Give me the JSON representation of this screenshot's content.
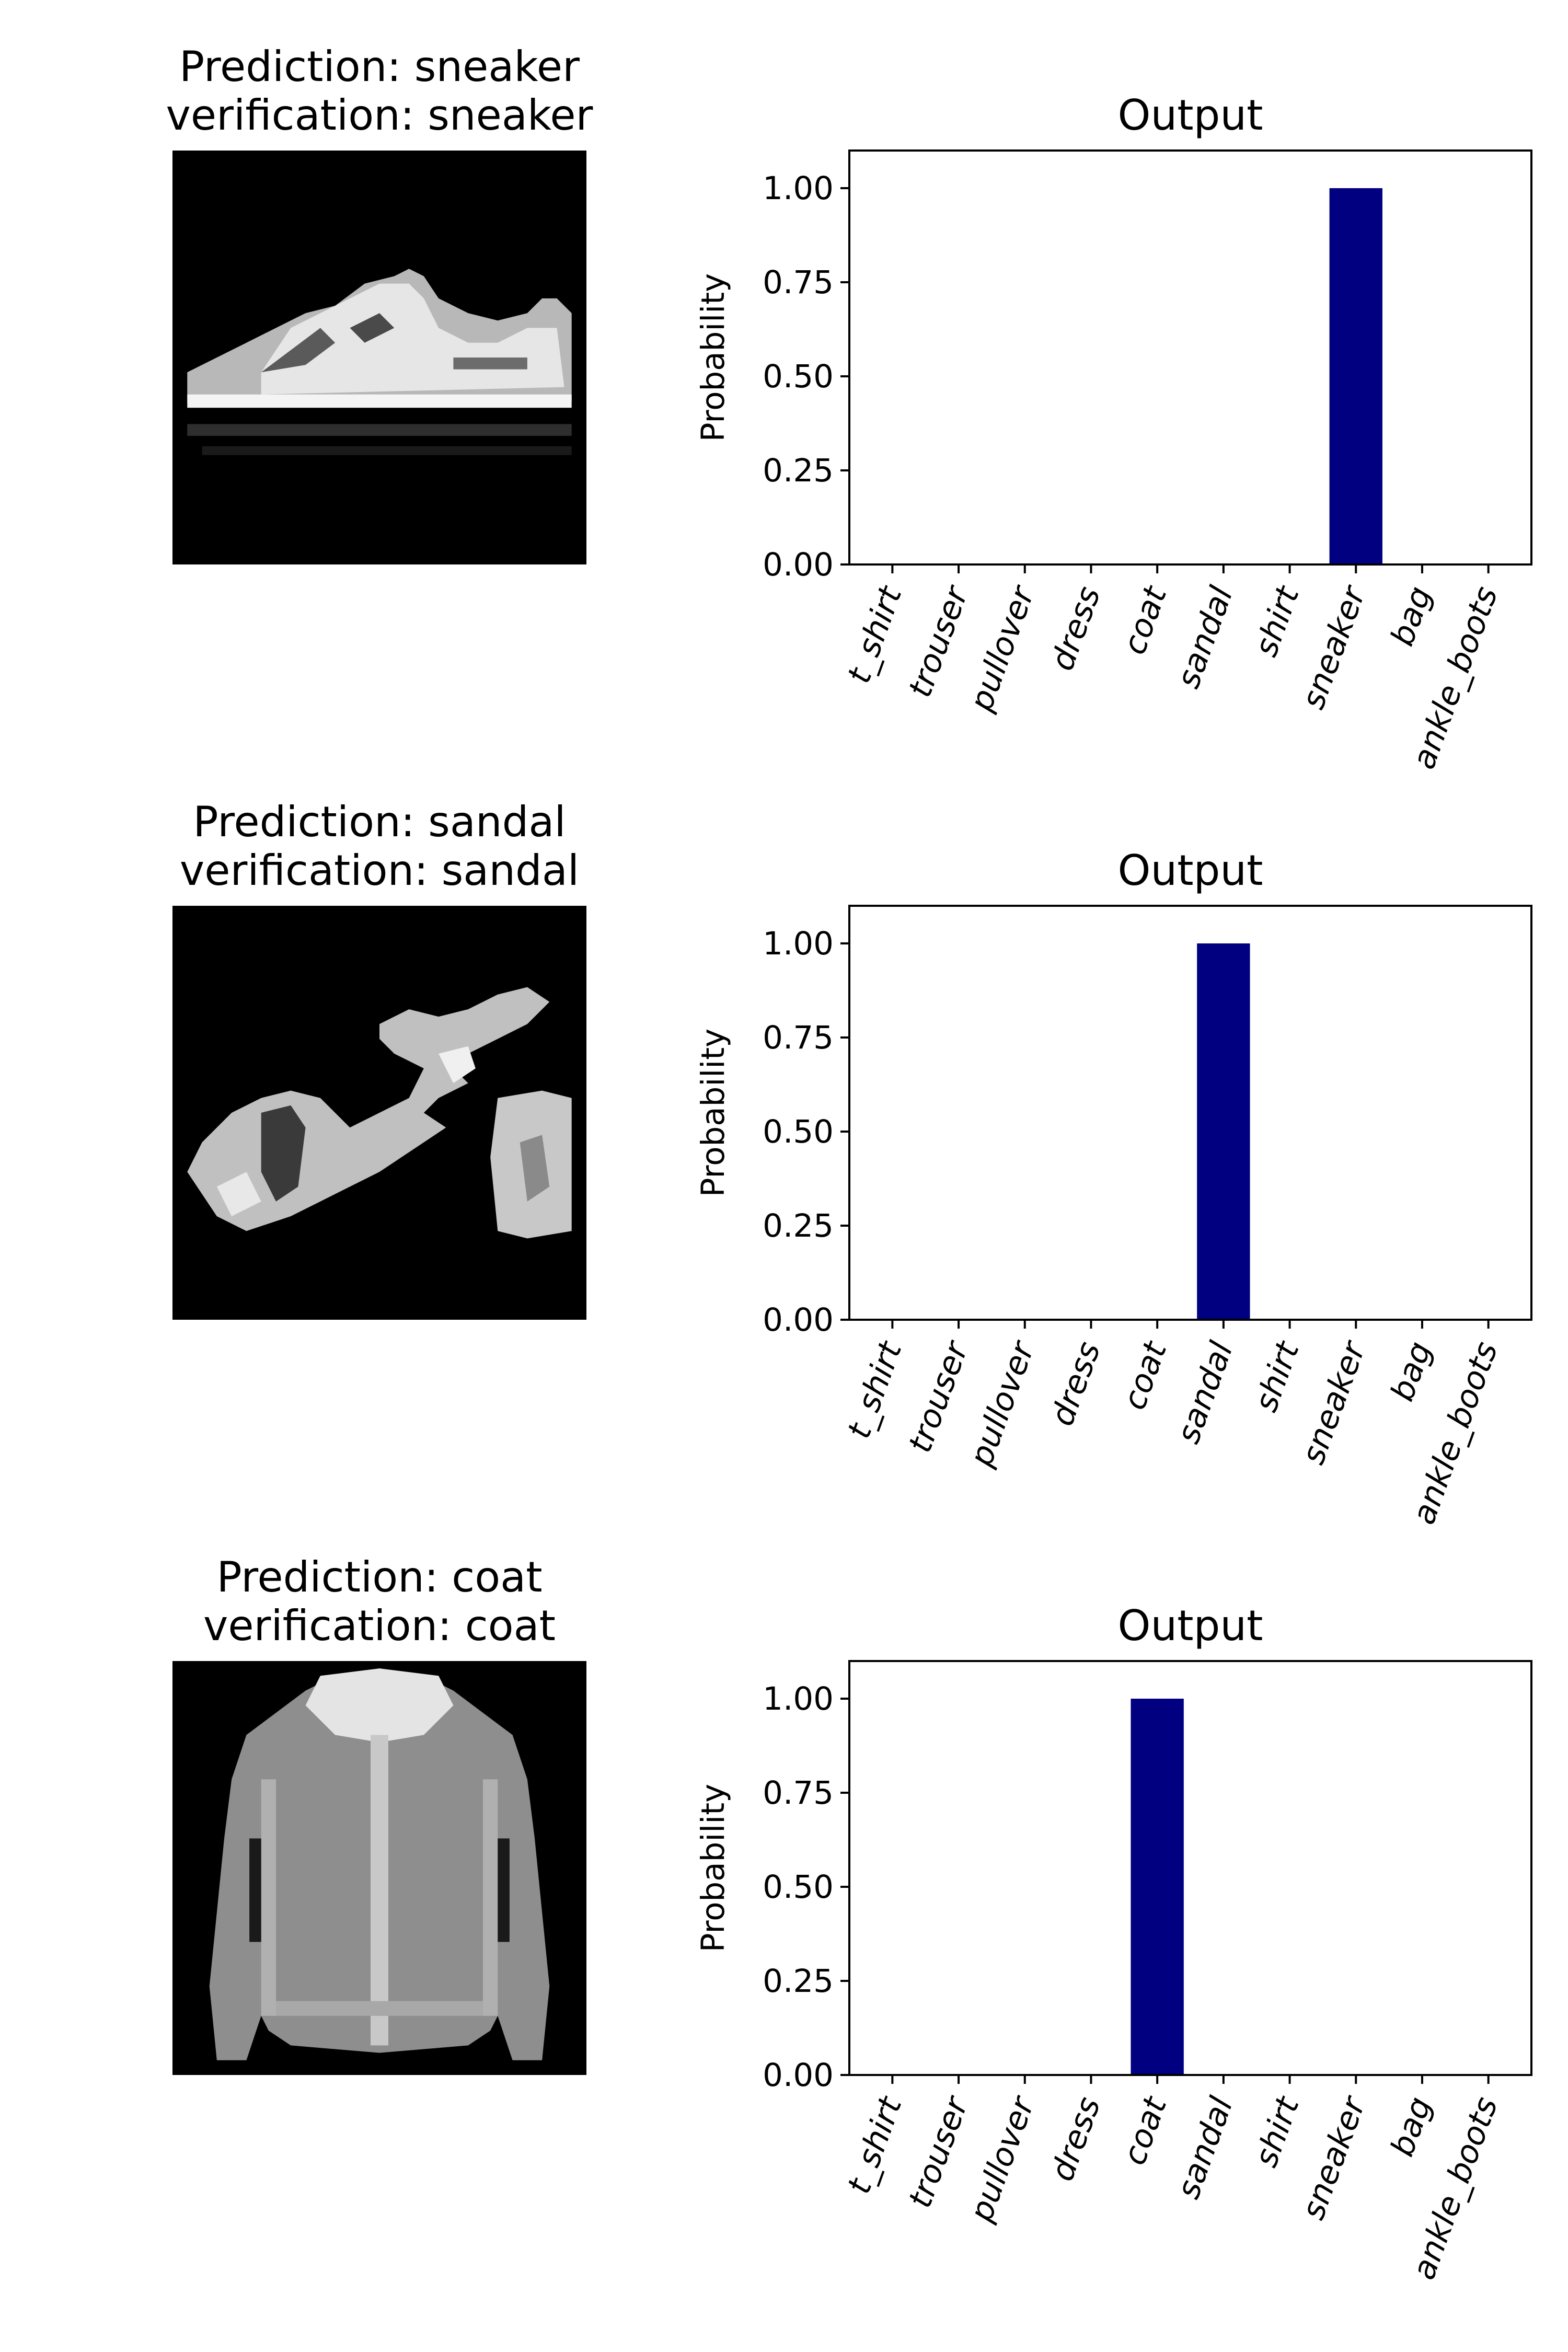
{
  "colors": {
    "bar": "#000080",
    "axis": "#000000",
    "background": "#ffffff"
  },
  "panels": [
    {
      "image": {
        "prediction_label": "Prediction: sneaker",
        "verification_label": "verification: sneaker",
        "depicts": "sneaker-icon"
      },
      "chart_data": {
        "type": "bar",
        "title": "Output",
        "xlabel": "",
        "ylabel": "Probability",
        "categories": [
          "t_shirt",
          "trouser",
          "pullover",
          "dress",
          "coat",
          "sandal",
          "shirt",
          "sneaker",
          "bag",
          "ankle_boots"
        ],
        "values": [
          0,
          0,
          0,
          0,
          0,
          0,
          0,
          1.0,
          0,
          0
        ],
        "ylim": [
          0,
          1.1
        ],
        "yticks": [
          "0.00",
          "0.25",
          "0.50",
          "0.75",
          "1.00"
        ],
        "grid": false,
        "legend": "none"
      }
    },
    {
      "image": {
        "prediction_label": "Prediction: sandal",
        "verification_label": "verification: sandal",
        "depicts": "sandal-icon"
      },
      "chart_data": {
        "type": "bar",
        "title": "Output",
        "xlabel": "",
        "ylabel": "Probability",
        "categories": [
          "t_shirt",
          "trouser",
          "pullover",
          "dress",
          "coat",
          "sandal",
          "shirt",
          "sneaker",
          "bag",
          "ankle_boots"
        ],
        "values": [
          0,
          0,
          0,
          0,
          0,
          1.0,
          0,
          0,
          0,
          0
        ],
        "ylim": [
          0,
          1.1
        ],
        "yticks": [
          "0.00",
          "0.25",
          "0.50",
          "0.75",
          "1.00"
        ],
        "grid": false,
        "legend": "none"
      }
    },
    {
      "image": {
        "prediction_label": "Prediction: coat",
        "verification_label": "verification: coat",
        "depicts": "coat-icon"
      },
      "chart_data": {
        "type": "bar",
        "title": "Output",
        "xlabel": "",
        "ylabel": "Probability",
        "categories": [
          "t_shirt",
          "trouser",
          "pullover",
          "dress",
          "coat",
          "sandal",
          "shirt",
          "sneaker",
          "bag",
          "ankle_boots"
        ],
        "values": [
          0,
          0,
          0,
          0,
          1.0,
          0,
          0,
          0,
          0,
          0
        ],
        "ylim": [
          0,
          1.1
        ],
        "yticks": [
          "0.00",
          "0.25",
          "0.50",
          "0.75",
          "1.00"
        ],
        "grid": false,
        "legend": "none"
      }
    }
  ]
}
